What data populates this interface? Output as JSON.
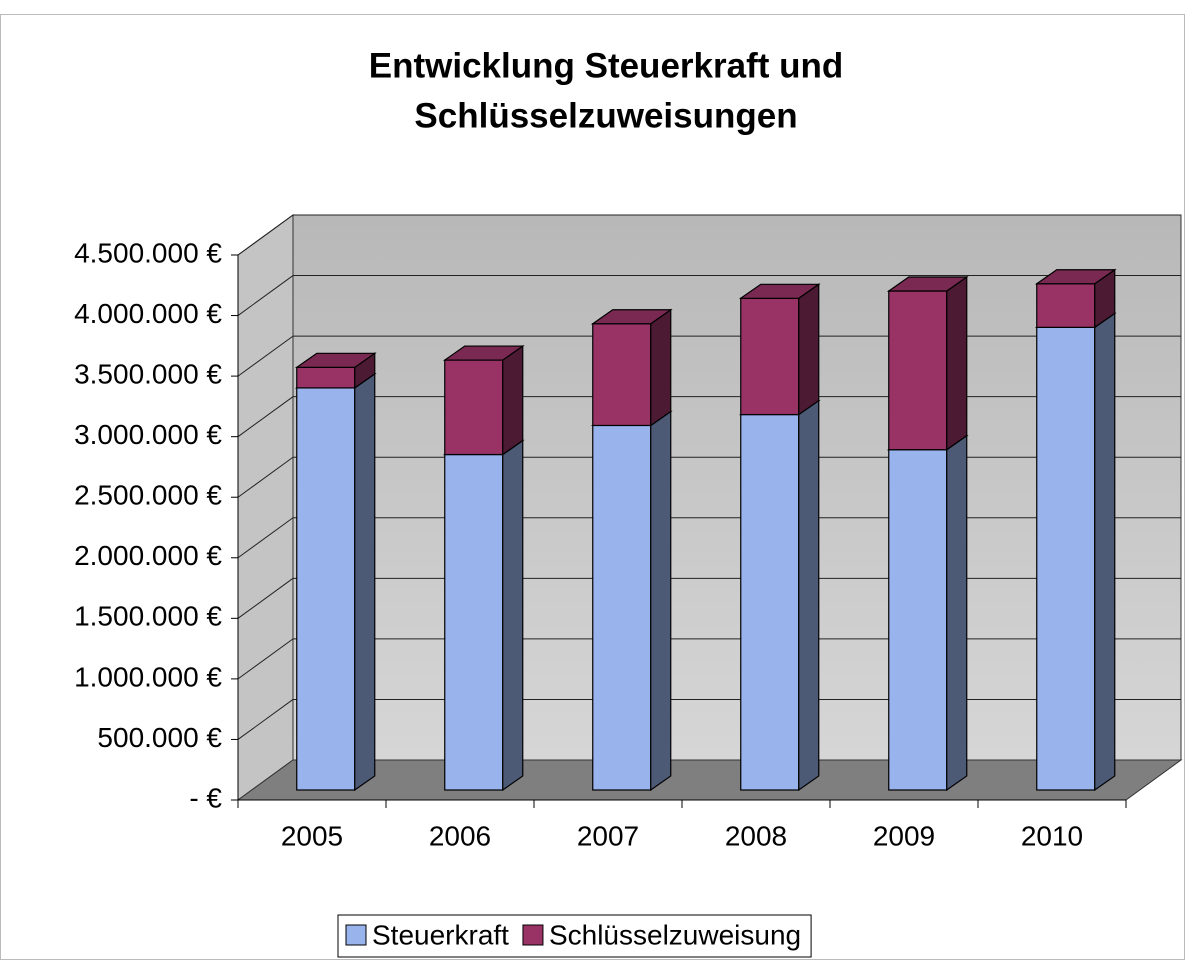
{
  "chart_data": {
    "type": "bar3d_stacked",
    "title": [
      "Entwicklung Steuerkraft und",
      "Schlüsselzuweisungen"
    ],
    "categories": [
      "2005",
      "2006",
      "2007",
      "2008",
      "2009",
      "2010"
    ],
    "series": [
      {
        "name": "Steuerkraft",
        "color": "#99b3ec",
        "values": [
          3320000,
          2770000,
          3010000,
          3100000,
          2810000,
          3820000
        ]
      },
      {
        "name": "Schlüsselzuweisung",
        "color": "#993366",
        "values": [
          170000,
          780000,
          840000,
          960000,
          1310000,
          360000
        ]
      }
    ],
    "ylim": [
      0,
      4500000
    ],
    "yticks": [
      {
        "value": 0,
        "label": "-   €"
      },
      {
        "value": 500000,
        "label": "500.000 €"
      },
      {
        "value": 1000000,
        "label": "1.000.000 €"
      },
      {
        "value": 1500000,
        "label": "1.500.000 €"
      },
      {
        "value": 2000000,
        "label": "2.000.000 €"
      },
      {
        "value": 2500000,
        "label": "2.500.000 €"
      },
      {
        "value": 3000000,
        "label": "3.000.000 €"
      },
      {
        "value": 3500000,
        "label": "3.500.000 €"
      },
      {
        "value": 4000000,
        "label": "4.000.000 €"
      },
      {
        "value": 4500000,
        "label": "4.500.000 €"
      }
    ],
    "grid": true,
    "legend": "bottom"
  }
}
